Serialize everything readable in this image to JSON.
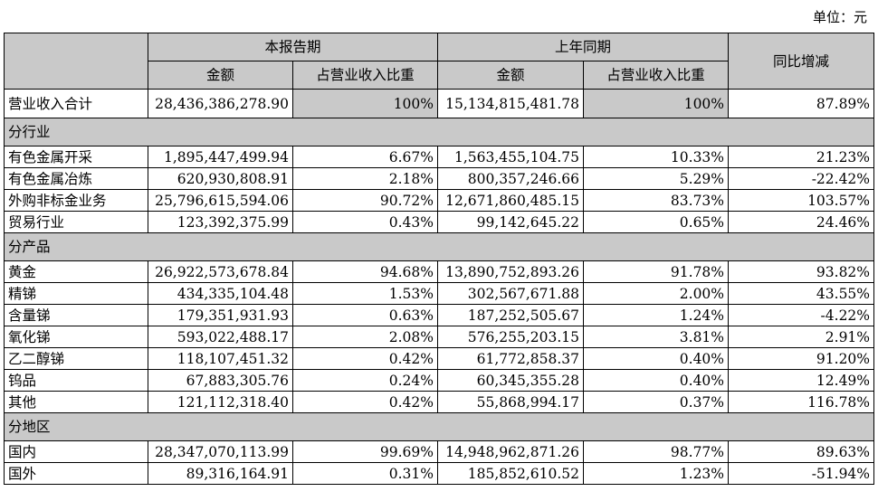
{
  "unit_label": "单位：元",
  "header": {
    "current_period": "本报告期",
    "prior_period": "上年同期",
    "yoy_change": "同比增减",
    "amount": "金额",
    "revenue_share": "占营业收入比重"
  },
  "total": {
    "label": "营业收入合计",
    "cur_amount": "28,436,386,278.90",
    "cur_share": "100%",
    "prev_amount": "15,134,815,481.78",
    "prev_share": "100%",
    "change": "87.89%"
  },
  "sections": [
    {
      "title": "分行业",
      "rows": [
        {
          "label": "有色金属开采",
          "cur_amount": "1,895,447,499.94",
          "cur_share": "6.67%",
          "prev_amount": "1,563,455,104.75",
          "prev_share": "10.33%",
          "change": "21.23%"
        },
        {
          "label": "有色金属冶炼",
          "cur_amount": "620,930,808.91",
          "cur_share": "2.18%",
          "prev_amount": "800,357,246.66",
          "prev_share": "5.29%",
          "change": "-22.42%"
        },
        {
          "label": "外购非标金业务",
          "cur_amount": "25,796,615,594.06",
          "cur_share": "90.72%",
          "prev_amount": "12,671,860,485.15",
          "prev_share": "83.73%",
          "change": "103.57%"
        },
        {
          "label": "贸易行业",
          "cur_amount": "123,392,375.99",
          "cur_share": "0.43%",
          "prev_amount": "99,142,645.22",
          "prev_share": "0.65%",
          "change": "24.46%"
        }
      ]
    },
    {
      "title": "分产品",
      "rows": [
        {
          "label": "黄金",
          "cur_amount": "26,922,573,678.84",
          "cur_share": "94.68%",
          "prev_amount": "13,890,752,893.26",
          "prev_share": "91.78%",
          "change": "93.82%"
        },
        {
          "label": "精锑",
          "cur_amount": "434,335,104.48",
          "cur_share": "1.53%",
          "prev_amount": "302,567,671.88",
          "prev_share": "2.00%",
          "change": "43.55%"
        },
        {
          "label": "含量锑",
          "cur_amount": "179,351,931.93",
          "cur_share": "0.63%",
          "prev_amount": "187,252,505.67",
          "prev_share": "1.24%",
          "change": "-4.22%"
        },
        {
          "label": "氧化锑",
          "cur_amount": "593,022,488.17",
          "cur_share": "2.08%",
          "prev_amount": "576,255,203.15",
          "prev_share": "3.81%",
          "change": "2.91%"
        },
        {
          "label": "乙二醇锑",
          "cur_amount": "118,107,451.32",
          "cur_share": "0.42%",
          "prev_amount": "61,772,858.37",
          "prev_share": "0.40%",
          "change": "91.20%"
        },
        {
          "label": "钨品",
          "cur_amount": "67,883,305.76",
          "cur_share": "0.24%",
          "prev_amount": "60,345,355.28",
          "prev_share": "0.40%",
          "change": "12.49%"
        },
        {
          "label": "其他",
          "cur_amount": "121,112,318.40",
          "cur_share": "0.42%",
          "prev_amount": "55,868,994.17",
          "prev_share": "0.37%",
          "change": "116.78%"
        }
      ]
    },
    {
      "title": "分地区",
      "rows": [
        {
          "label": "国内",
          "cur_amount": "28,347,070,113.99",
          "cur_share": "99.69%",
          "prev_amount": "14,948,962,871.26",
          "prev_share": "98.77%",
          "change": "89.63%"
        },
        {
          "label": "国外",
          "cur_amount": "89,316,164.91",
          "cur_share": "0.31%",
          "prev_amount": "185,852,610.52",
          "prev_share": "1.23%",
          "change": "-51.94%"
        }
      ]
    }
  ]
}
